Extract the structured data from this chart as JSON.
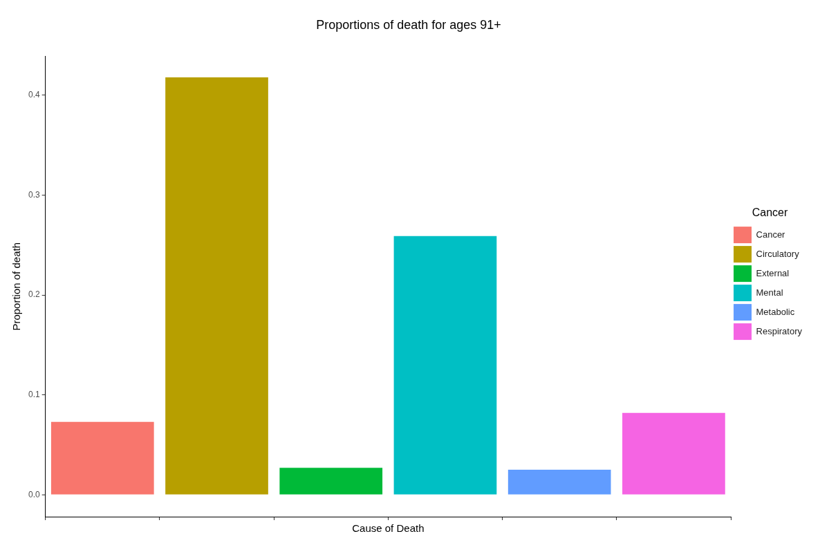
{
  "chart_data": {
    "type": "bar",
    "title": "Proportions of death for ages 91+",
    "xlabel": "Cause of Death",
    "ylabel": "Proportion of death",
    "legend_title": "Cancer",
    "categories": [
      null,
      null,
      null,
      null,
      null,
      null
    ],
    "series": [
      {
        "name": "Cancer",
        "color": "#f8766d",
        "values": [
          0.073,
          null,
          null,
          null,
          null,
          null
        ]
      },
      {
        "name": "Circulatory",
        "color": "#b79f00",
        "values": [
          null,
          0.418,
          null,
          null,
          null,
          null
        ]
      },
      {
        "name": "External",
        "color": "#00ba38",
        "values": [
          null,
          null,
          0.027,
          null,
          null,
          null
        ]
      },
      {
        "name": "Mental",
        "color": "#00bfc4",
        "values": [
          null,
          null,
          null,
          0.259,
          null,
          null
        ]
      },
      {
        "name": "Metabolic",
        "color": "#619cff",
        "values": [
          null,
          null,
          null,
          null,
          0.025,
          null
        ]
      },
      {
        "name": "Respiratory",
        "color": "#f564e3",
        "values": [
          null,
          null,
          null,
          null,
          null,
          0.082
        ]
      }
    ],
    "ylim": [
      -0.022,
      0.439
    ],
    "yticks": [
      {
        "value": 0,
        "label": "0.0"
      },
      {
        "value": 0.1,
        "label": "0.1"
      },
      {
        "value": 0.2,
        "label": "0.2"
      },
      {
        "value": 0.3,
        "label": "0.3"
      },
      {
        "value": 0.4,
        "label": "0.4"
      }
    ],
    "grid": false,
    "legend": "right",
    "tick_labels": "y"
  }
}
